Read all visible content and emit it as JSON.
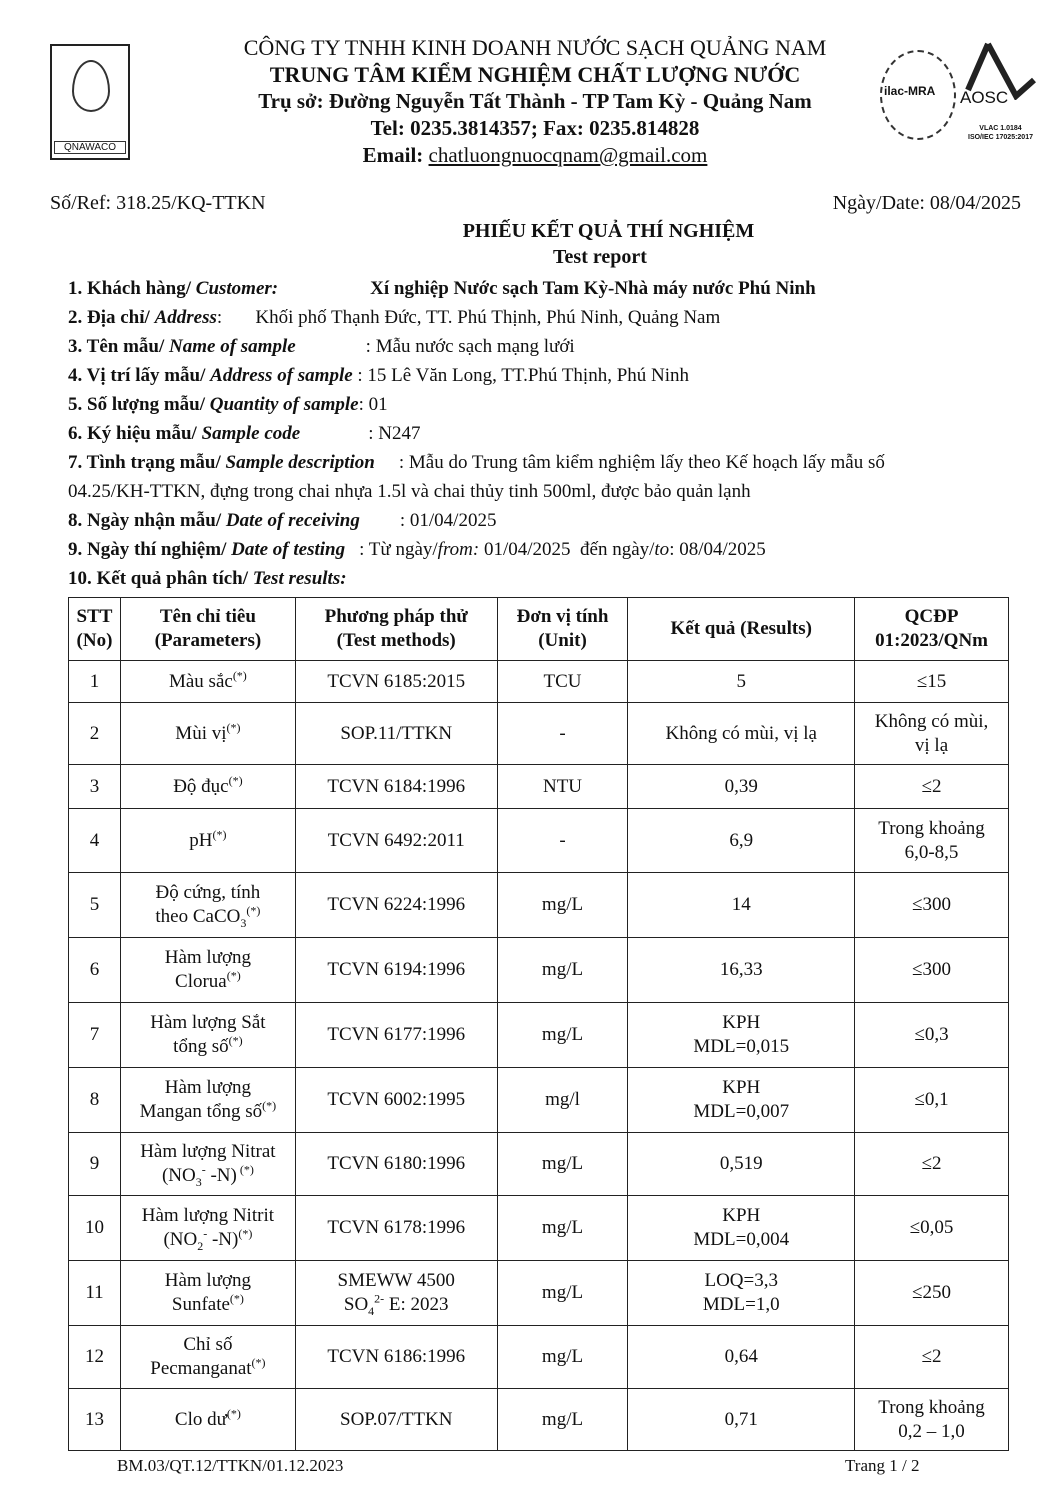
{
  "header": {
    "company": "CÔNG TY TNHH KINH DOANH NƯỚC SẠCH QUẢNG NAM",
    "center": "TRUNG TÂM KIỂM NGHIỆM CHẤT LƯỢNG NƯỚC",
    "address": "Trụ sở: Đường Nguyễn Tất Thành - TP Tam Kỳ -  Quảng Nam",
    "tel": "Tel: 0235.3814357; Fax: 0235.814828",
    "email_label": "Email: ",
    "email": "chatluongnuocqnam@gmail.com",
    "logo_left": "QNAWACO",
    "logo_ilac": "ilac-MRA",
    "logo_aosc": "AOSC",
    "aosc_sub1": "VLAC 1.0184",
    "aosc_sub2": "ISO/IEC 17025:2017"
  },
  "ref": "Số/Ref: 318.25/KQ-TTKN",
  "date": "Ngày/Date: 08/04/2025",
  "title": "PHIẾU KẾT QUẢ THÍ NGHIỆM",
  "subtitle": "Test report",
  "info": {
    "customer_label": "1. Khách hàng/ ",
    "customer_label_en": "Customer:",
    "customer": "Xí nghiệp Nước sạch Tam Kỳ-Nhà máy nước Phú Ninh",
    "address_label": "2. Địa chỉ/ ",
    "address_label_en": "Address",
    "address": ":       Khối phố Thạnh Đức, TT. Phú Thịnh, Phú Ninh, Quảng Nam",
    "name_label": "3. Tên mẫu/ ",
    "name_label_en": "Name of sample",
    "name": ": Mẫu nước sạch mạng lưới",
    "loc_label": "4. Vị trí lấy mẫu/ ",
    "loc_label_en": "Address of sample",
    "loc": " : 15 Lê Văn Long, TT.Phú Thịnh, Phú Ninh",
    "qty_label": "5. Số lượng mẫu/ ",
    "qty_label_en": "Quantity of sample",
    "qty": ": 01",
    "code_label": "6. Ký hiệu mẫu/ ",
    "code_label_en": "Sample code",
    "code": ": N247",
    "desc_label": "7. Tình trạng mẫu/ ",
    "desc_label_en": "Sample description",
    "desc": ": Mẫu do Trung tâm kiểm nghiệm lấy theo Kế hoạch lấy mẫu số",
    "desc2": "04.25/KH-TTKN, đựng trong chai nhựa 1.5l và chai thủy tinh 500ml, được bảo quản lạnh",
    "recv_label": "8. Ngày nhận mẫu/ ",
    "recv_label_en": "Date of receiving",
    "recv": ": 01/04/2025",
    "test_label": "9. Ngày thí nghiệm/ ",
    "test_label_en": "Date of testing",
    "test_pre": ": Từ ngày/",
    "test_from_en": "from:",
    "test_mid": " 01/04/2025  đến ngày/",
    "test_to_en": "to",
    "test_end": ": 08/04/2025",
    "results_label": "10. Kết quả phân tích/ ",
    "results_label_en": "Test results:"
  },
  "table": {
    "headers": [
      [
        "STT",
        "(No)"
      ],
      [
        "Tên chỉ tiêu",
        "(Parameters)"
      ],
      [
        "Phương pháp thử",
        "(Test methods)"
      ],
      [
        "Đơn vị tính",
        "(Unit)"
      ],
      [
        "Kết quả (Results)"
      ],
      [
        "QCĐP",
        "01:2023/QNm"
      ]
    ],
    "rows": [
      {
        "no": "1",
        "param": [
          [
            "t",
            "Màu sắc"
          ],
          [
            "sup",
            "(*)"
          ]
        ],
        "method": [
          [
            "t",
            "TCVN 6185:2015"
          ]
        ],
        "unit": "TCU",
        "result": [
          "5"
        ],
        "limit": [
          "≤15"
        ]
      },
      {
        "no": "2",
        "param": [
          [
            "t",
            "Mùi vị"
          ],
          [
            "sup",
            "(*)"
          ]
        ],
        "method": [
          [
            "t",
            "SOP.11/TTKN"
          ]
        ],
        "unit": "-",
        "result": [
          "Không có mùi, vị lạ"
        ],
        "limit": [
          "Không có mùi,",
          "vị lạ"
        ]
      },
      {
        "no": "3",
        "param": [
          [
            "t",
            "Độ đục"
          ],
          [
            "sup",
            "(*)"
          ]
        ],
        "method": [
          [
            "t",
            "TCVN 6184:1996"
          ]
        ],
        "unit": "NTU",
        "result": [
          "0,39"
        ],
        "limit": [
          "≤2"
        ]
      },
      {
        "no": "4",
        "param": [
          [
            "t",
            "pH"
          ],
          [
            "sup",
            "(*)"
          ]
        ],
        "method": [
          [
            "t",
            "TCVN 6492:2011"
          ]
        ],
        "unit": "-",
        "result": [
          "6,9"
        ],
        "limit": [
          "Trong khoảng",
          "6,0-8,5"
        ]
      },
      {
        "no": "5",
        "param": [
          [
            "t",
            "Độ cứng, tính"
          ],
          [
            "br",
            ""
          ],
          [
            "t",
            "theo CaCO"
          ],
          [
            "sub",
            "3"
          ],
          [
            "sup",
            "(*)"
          ]
        ],
        "method": [
          [
            "t",
            "TCVN 6224:1996"
          ]
        ],
        "unit": "mg/L",
        "result": [
          "14"
        ],
        "limit": [
          "≤300"
        ]
      },
      {
        "no": "6",
        "param": [
          [
            "t",
            "Hàm lượng"
          ],
          [
            "br",
            ""
          ],
          [
            "t",
            "Clorua"
          ],
          [
            "sup",
            "(*)"
          ]
        ],
        "method": [
          [
            "t",
            "TCVN 6194:1996"
          ]
        ],
        "unit": "mg/L",
        "result": [
          "16,33"
        ],
        "limit": [
          "≤300"
        ]
      },
      {
        "no": "7",
        "param": [
          [
            "t",
            "Hàm lượng Sắt"
          ],
          [
            "br",
            ""
          ],
          [
            "t",
            "tổng số"
          ],
          [
            "sup",
            "(*)"
          ]
        ],
        "method": [
          [
            "t",
            "TCVN 6177:1996"
          ]
        ],
        "unit": "mg/L",
        "result": [
          "KPH",
          "MDL=0,015"
        ],
        "limit": [
          "≤0,3"
        ]
      },
      {
        "no": "8",
        "param": [
          [
            "t",
            "Hàm lượng"
          ],
          [
            "br",
            ""
          ],
          [
            "t",
            "Mangan tổng số"
          ],
          [
            "sup",
            "(*)"
          ]
        ],
        "method": [
          [
            "t",
            "TCVN 6002:1995"
          ]
        ],
        "unit": "mg/l",
        "result": [
          "KPH",
          "MDL=0,007"
        ],
        "limit": [
          "≤0,1"
        ]
      },
      {
        "no": "9",
        "param": [
          [
            "t",
            "Hàm lượng Nitrat"
          ],
          [
            "br",
            ""
          ],
          [
            "t",
            "(NO"
          ],
          [
            "sub",
            "3"
          ],
          [
            "sup",
            "-"
          ],
          [
            "t",
            " -N)"
          ],
          [
            "sup",
            " (*)"
          ]
        ],
        "method": [
          [
            "t",
            "TCVN 6180:1996"
          ]
        ],
        "unit": "mg/L",
        "result": [
          "0,519"
        ],
        "limit": [
          "≤2"
        ]
      },
      {
        "no": "10",
        "param": [
          [
            "t",
            "Hàm lượng Nitrit"
          ],
          [
            "br",
            ""
          ],
          [
            "t",
            "(NO"
          ],
          [
            "sub",
            "2"
          ],
          [
            "sup",
            "-"
          ],
          [
            "t",
            " -N)"
          ],
          [
            "sup",
            "(*)"
          ]
        ],
        "method": [
          [
            "t",
            "TCVN 6178:1996"
          ]
        ],
        "unit": "mg/L",
        "result": [
          "KPH",
          "MDL=0,004"
        ],
        "limit": [
          "≤0,05"
        ]
      },
      {
        "no": "11",
        "param": [
          [
            "t",
            "Hàm lượng"
          ],
          [
            "br",
            ""
          ],
          [
            "t",
            "Sunfate"
          ],
          [
            "sup",
            "(*)"
          ]
        ],
        "method": [
          [
            "t",
            "SMEWW 4500"
          ],
          [
            "br",
            ""
          ],
          [
            "t",
            "SO"
          ],
          [
            "sub",
            "4"
          ],
          [
            "sup",
            "2-"
          ],
          [
            "t",
            " E: 2023"
          ]
        ],
        "unit": "mg/L",
        "result": [
          "LOQ=3,3",
          "MDL=1,0"
        ],
        "limit": [
          "≤250"
        ]
      },
      {
        "no": "12",
        "param": [
          [
            "t",
            "Chỉ số"
          ],
          [
            "br",
            ""
          ],
          [
            "t",
            "Pecmanganat"
          ],
          [
            "sup",
            "(*)"
          ]
        ],
        "method": [
          [
            "t",
            "TCVN 6186:1996"
          ]
        ],
        "unit": "mg/L",
        "result": [
          "0,64"
        ],
        "limit": [
          "≤2"
        ]
      },
      {
        "no": "13",
        "param": [
          [
            "t",
            "Clo dư"
          ],
          [
            "sup",
            "(*)"
          ]
        ],
        "method": [
          [
            "t",
            "SOP.07/TTKN"
          ]
        ],
        "unit": "mg/L",
        "result": [
          "0,71"
        ],
        "limit": [
          "Trong khoảng",
          "0,2 – 1,0"
        ]
      }
    ]
  },
  "footer": {
    "form_code": "BM.03/QT.12/TTKN/01.12.2023",
    "page": "Trang 1 / 2"
  }
}
